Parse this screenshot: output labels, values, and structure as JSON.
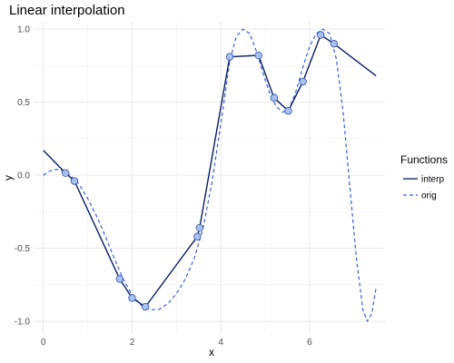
{
  "chart_data": {
    "type": "line",
    "title": "Linear interpolation",
    "xlabel": "x",
    "ylabel": "y",
    "xlim": [
      -0.2,
      7.7
    ],
    "ylim": [
      -1.08,
      1.05
    ],
    "x_ticks": [
      0,
      2,
      4,
      6
    ],
    "y_ticks": [
      -1.0,
      -0.5,
      0.0,
      0.5,
      1.0
    ],
    "y_tick_labels": [
      "-1.0",
      "-0.5",
      "0.0",
      "0.5",
      "1.0"
    ],
    "grid": true,
    "legend": {
      "title": "Functions",
      "position": "right",
      "entries": [
        "interp",
        "orig"
      ]
    },
    "colors": {
      "interp": "#0b1c5e",
      "orig": "#3a5fd8",
      "point_fill": "#a8c2f0",
      "point_stroke": "#2f4fa3",
      "panel": "#ffffff",
      "grid_major": "#e6e6e6",
      "grid_minor": "#f2f2f2"
    },
    "series": [
      {
        "name": "interp",
        "style": "solid",
        "x": [
          0.0,
          0.5,
          0.7,
          1.72,
          2.0,
          2.3,
          3.47,
          3.52,
          4.2,
          4.85,
          5.2,
          5.52,
          5.85,
          6.25,
          6.55,
          7.5
        ],
        "y": [
          0.17,
          0.015,
          -0.04,
          -0.71,
          -0.84,
          -0.9,
          -0.42,
          -0.36,
          0.81,
          0.82,
          0.53,
          0.44,
          0.64,
          0.96,
          0.9,
          0.68
        ]
      },
      {
        "name": "orig",
        "style": "dashed",
        "x": [
          0.0,
          0.15,
          0.3,
          0.45,
          0.6,
          0.8,
          1.0,
          1.2,
          1.4,
          1.6,
          1.8,
          2.0,
          2.2,
          2.4,
          2.6,
          2.8,
          3.0,
          3.2,
          3.4,
          3.6,
          3.8,
          4.0,
          4.2,
          4.35,
          4.5,
          4.65,
          4.8,
          4.95,
          5.1,
          5.25,
          5.4,
          5.55,
          5.7,
          5.85,
          6.0,
          6.15,
          6.3,
          6.45,
          6.6,
          6.75,
          6.9,
          7.05,
          7.2,
          7.3,
          7.4,
          7.5
        ],
        "y": [
          0.0,
          0.03,
          0.04,
          0.03,
          0.0,
          -0.06,
          -0.16,
          -0.28,
          -0.42,
          -0.57,
          -0.71,
          -0.82,
          -0.89,
          -0.92,
          -0.92,
          -0.88,
          -0.81,
          -0.71,
          -0.57,
          -0.36,
          -0.05,
          0.35,
          0.78,
          0.95,
          1.0,
          0.97,
          0.85,
          0.7,
          0.56,
          0.47,
          0.43,
          0.46,
          0.58,
          0.74,
          0.88,
          0.97,
          1.0,
          0.97,
          0.8,
          0.45,
          -0.05,
          -0.55,
          -0.92,
          -1.0,
          -0.95,
          -0.77
        ]
      }
    ],
    "points": {
      "x": [
        0.5,
        0.7,
        1.72,
        2.0,
        2.3,
        3.47,
        3.52,
        4.2,
        4.85,
        5.2,
        5.52,
        5.85,
        6.25,
        6.55
      ],
      "y": [
        0.015,
        -0.04,
        -0.71,
        -0.84,
        -0.9,
        -0.42,
        -0.36,
        0.81,
        0.82,
        0.53,
        0.44,
        0.64,
        0.96,
        0.9
      ]
    }
  }
}
